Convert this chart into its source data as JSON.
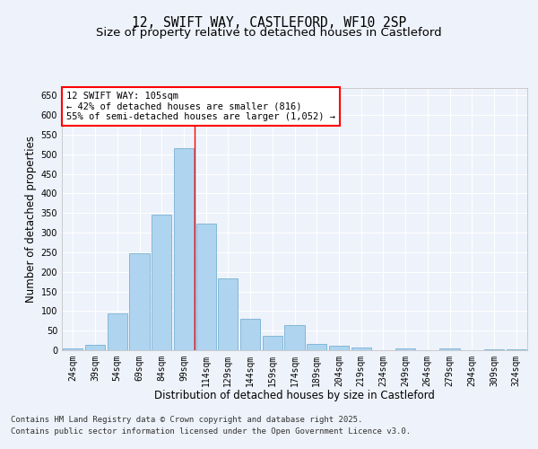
{
  "title_line1": "12, SWIFT WAY, CASTLEFORD, WF10 2SP",
  "title_line2": "Size of property relative to detached houses in Castleford",
  "xlabel": "Distribution of detached houses by size in Castleford",
  "ylabel": "Number of detached properties",
  "categories": [
    "24sqm",
    "39sqm",
    "54sqm",
    "69sqm",
    "84sqm",
    "99sqm",
    "114sqm",
    "129sqm",
    "144sqm",
    "159sqm",
    "174sqm",
    "189sqm",
    "204sqm",
    "219sqm",
    "234sqm",
    "249sqm",
    "264sqm",
    "279sqm",
    "294sqm",
    "309sqm",
    "324sqm"
  ],
  "values": [
    5,
    14,
    95,
    248,
    347,
    515,
    323,
    183,
    80,
    36,
    63,
    16,
    11,
    8,
    1,
    4,
    0,
    5,
    0,
    2,
    3
  ],
  "bar_color": "#aed4ef",
  "bar_edge_color": "#7ab0d4",
  "vline_index": 6,
  "vline_color": "red",
  "annotation_text": "12 SWIFT WAY: 105sqm\n← 42% of detached houses are smaller (816)\n55% of semi-detached houses are larger (1,052) →",
  "annotation_box_color": "white",
  "annotation_box_edge_color": "red",
  "ylim": [
    0,
    670
  ],
  "yticks": [
    0,
    50,
    100,
    150,
    200,
    250,
    300,
    350,
    400,
    450,
    500,
    550,
    600,
    650
  ],
  "background_color": "#eef2fa",
  "plot_bg_color": "#eef2fa",
  "grid_color": "white",
  "footer_line1": "Contains HM Land Registry data © Crown copyright and database right 2025.",
  "footer_line2": "Contains public sector information licensed under the Open Government Licence v3.0.",
  "title_fontsize": 10.5,
  "subtitle_fontsize": 9.5,
  "axis_label_fontsize": 8.5,
  "tick_fontsize": 7,
  "annotation_fontsize": 7.5,
  "footer_fontsize": 6.5
}
